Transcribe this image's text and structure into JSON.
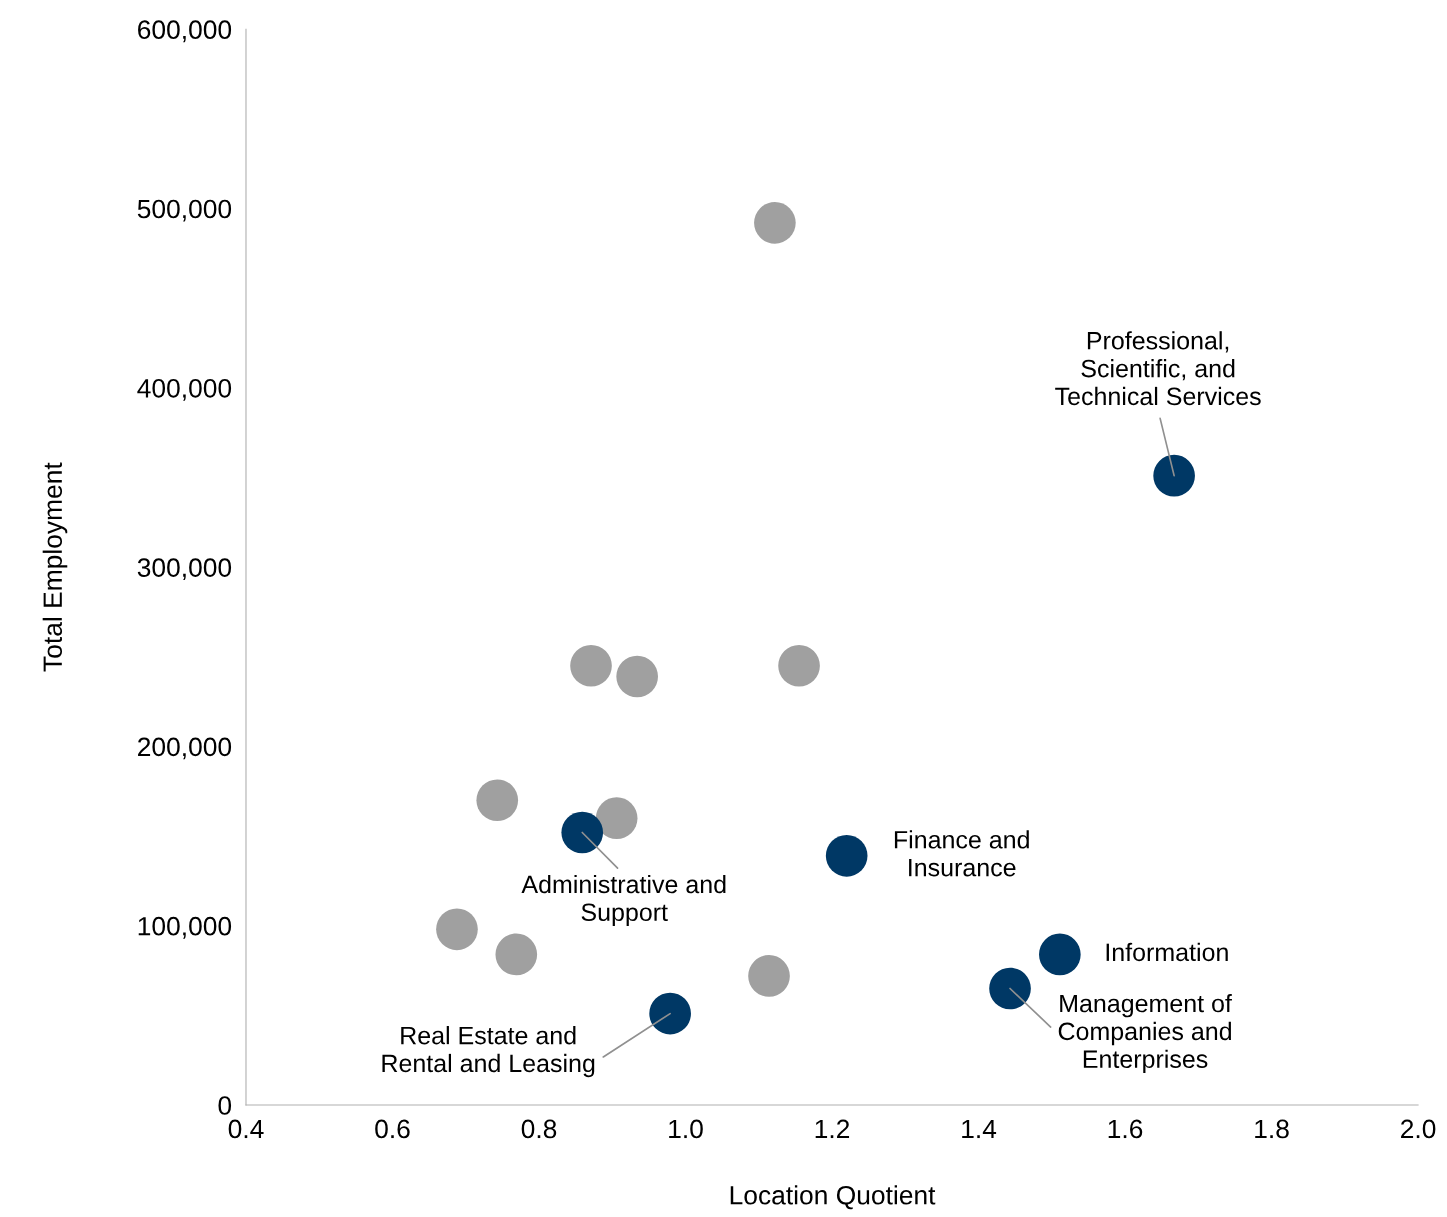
{
  "chart_data": {
    "type": "scatter",
    "xlabel": "Location Quotient",
    "ylabel": "Total Employment",
    "xlim": [
      0.4,
      2.0
    ],
    "xticks": [
      0.4,
      0.6,
      0.8,
      {
        "value": 1,
        "label": "1.0"
      },
      1.2,
      1.4,
      1.6,
      1.8,
      {
        "value": 2,
        "label": "2.0"
      }
    ],
    "ylim": [
      0,
      600000
    ],
    "yticks": [
      0,
      {
        "value": 100000,
        "label": "100,000"
      },
      {
        "value": 200000,
        "label": "200,000"
      },
      {
        "value": 300000,
        "label": "300,000"
      },
      {
        "value": 400000,
        "label": "400,000"
      },
      {
        "value": 500000,
        "label": "500,000"
      },
      {
        "value": 600000,
        "label": "600,000"
      }
    ],
    "grid": false,
    "legend": false,
    "marker": "circle",
    "series": [
      {
        "color": "#a0a0a0",
        "x": [
          1.122,
          0.871,
          0.934,
          1.155,
          0.743,
          0.906,
          0.688,
          0.769,
          1.114
        ],
        "values": [
          492000,
          245000,
          239000,
          245000,
          170000,
          160000,
          98000,
          84000,
          72000
        ]
      },
      {
        "color": "#003865",
        "x": [
          1.667,
          0.859,
          1.22,
          1.511,
          1.443,
          0.979
        ],
        "values": [
          351000,
          152000,
          139000,
          84000,
          65000,
          51000
        ]
      }
    ],
    "annotations": [
      {
        "text": "Professional,\nScientific, and\nTechnical Services",
        "x": 1.667,
        "y": 351000
      },
      {
        "text": "Administrative and\nSupport",
        "x": 0.859,
        "y": 152000
      },
      {
        "text": "Finance and\nInsurance",
        "x": 1.22,
        "y": 139000
      },
      {
        "text": "Information",
        "x": 1.511,
        "y": 84000
      },
      {
        "text": "Management of\nCompanies and\nEnterprises",
        "x": 1.443,
        "y": 65000
      },
      {
        "text": "Real Estate and\nRental and Leasing",
        "x": 0.979,
        "y": 51000
      }
    ]
  }
}
